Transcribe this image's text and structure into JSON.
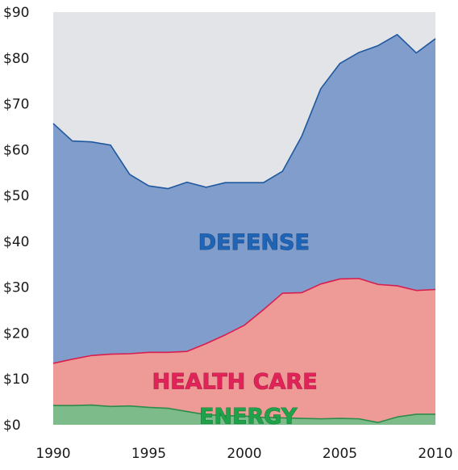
{
  "chart_data": {
    "type": "area",
    "stacked": true,
    "xlim": [
      1990,
      2010
    ],
    "ylim": [
      0,
      90
    ],
    "grid": false,
    "legend": "inline",
    "x": [
      1990,
      1991,
      1992,
      1993,
      1994,
      1995,
      1996,
      1997,
      1998,
      1999,
      2000,
      2001,
      2002,
      2003,
      2004,
      2005,
      2006,
      2007,
      2008,
      2009,
      2010
    ],
    "x_ticks": [
      1990,
      1995,
      2000,
      2005,
      2010
    ],
    "x_tick_labels": [
      "1990",
      "1995",
      "2000",
      "2005",
      "2010"
    ],
    "y_ticks": [
      0,
      10,
      20,
      30,
      40,
      50,
      60,
      70,
      80,
      90
    ],
    "y_tick_labels": [
      "$0",
      "$10",
      "$20",
      "$30",
      "$40",
      "$50",
      "$60",
      "$70",
      "$80",
      "$90"
    ],
    "series": [
      {
        "name": "ENERGY",
        "fill": "#7dbb8a",
        "stroke": "#2e8b4a",
        "label_color": "#1fa34a",
        "label_outline": "#0e6b2c",
        "values": [
          4.2,
          4.2,
          4.3,
          4.0,
          4.1,
          3.8,
          3.6,
          2.9,
          2.2,
          2.0,
          1.9,
          1.6,
          1.5,
          1.4,
          1.3,
          1.4,
          1.3,
          0.5,
          1.7,
          2.3,
          2.3
        ]
      },
      {
        "name": "HEALTH CARE",
        "fill": "#ee9a97",
        "stroke": "#d81e4e",
        "label_color": "#e0245a",
        "label_outline": "#a01237",
        "values": [
          9.2,
          10.1,
          10.8,
          11.4,
          11.4,
          12.0,
          12.2,
          13.1,
          15.5,
          17.6,
          19.8,
          23.5,
          27.2,
          27.4,
          29.4,
          30.4,
          30.6,
          30.1,
          28.6,
          27.0,
          27.2
        ]
      },
      {
        "name": "DEFENSE",
        "fill": "#819dcb",
        "stroke": "#1e58a0",
        "label_color": "#1f64b5",
        "label_outline": "#0d3f7d",
        "values": [
          52.3,
          47.6,
          46.6,
          45.6,
          39.1,
          36.3,
          35.7,
          36.9,
          34.1,
          33.2,
          31.1,
          27.7,
          26.6,
          34.1,
          42.6,
          47.0,
          49.3,
          52.1,
          54.8,
          51.8,
          54.7
        ]
      }
    ],
    "background_fill": "#e3e4e7"
  }
}
